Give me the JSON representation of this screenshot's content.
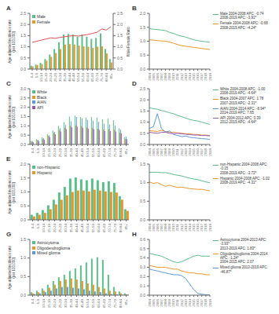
{
  "chart_data": [
    {
      "type": "bar",
      "title": "A",
      "ylabel": "Age-adjusted incidence rate\n(per 100,000)",
      "y2label": "Male/Female Ratio",
      "categories": [
        "0-4",
        "5-9",
        "10-14",
        "15-19",
        "20-24",
        "25-29",
        "30-34",
        "35-39",
        "40-44",
        "45-49",
        "50-54",
        "55-59",
        "60-64",
        "65-69",
        "70-74",
        "75-79",
        "80-84",
        "85+"
      ],
      "series": [
        {
          "name": "Male",
          "color": "#5DBD8A",
          "values": [
            0.15,
            0.2,
            0.28,
            0.45,
            0.65,
            0.9,
            1.2,
            1.55,
            1.58,
            1.55,
            1.45,
            1.55,
            1.45,
            1.35,
            1.4,
            1.6,
            0.9,
            0.45
          ]
        },
        {
          "name": "Female",
          "color": "#E8962A",
          "values": [
            0.12,
            0.18,
            0.22,
            0.38,
            0.55,
            0.72,
            0.9,
            1.1,
            1.12,
            1.1,
            1.05,
            1.02,
            1.0,
            0.95,
            1.0,
            1.02,
            0.7,
            0.3
          ]
        },
        {
          "type": "line",
          "axis": "y2",
          "color": "#E05050",
          "values": [
            1.2,
            1.25,
            1.3,
            1.35,
            1.4,
            1.38,
            1.42,
            1.45,
            1.48,
            1.5,
            1.48,
            1.52,
            1.55,
            1.6,
            1.65,
            1.8,
            1.75,
            1.9
          ]
        }
      ],
      "ylim": [
        0,
        2.5
      ],
      "yticks": [
        {
          "value": 0,
          "label": "0.0"
        },
        0.5,
        {
          "value": 1,
          "label": "1.0"
        },
        1.5,
        {
          "value": 2,
          "label": "2.0"
        },
        2.5
      ],
      "y2lim": [
        0,
        2.5
      ],
      "y2ticks": [
        {
          "value": 0,
          "label": "0.0"
        },
        0.5,
        {
          "value": 1,
          "label": "1.0"
        },
        1.5,
        {
          "value": 2,
          "label": "2.0"
        },
        2.5
      ],
      "legend": "upper left"
    },
    {
      "type": "line",
      "title": "B",
      "categories": [
        "2004",
        "2005",
        "2006",
        "2007",
        "2008",
        "2009",
        "2010",
        "2011",
        "2012",
        "2013",
        "2014",
        "2015",
        "2016",
        "2017",
        "2018",
        "2019"
      ],
      "series": [
        {
          "name": "Male 2004-2008 APC: -0.74\n2008-2019 APC: -3.91*",
          "color": "#5DBD8A",
          "values": [
            1.45,
            1.43,
            1.42,
            1.4,
            1.38,
            1.32,
            1.28,
            1.22,
            1.18,
            1.15,
            1.1,
            1.05,
            1.02,
            1.0,
            0.98,
            0.96
          ]
        },
        {
          "name": "Female 2004-2008 APC: -0.68\n2008-2019 APC: -4.24*",
          "color": "#E8962A",
          "values": [
            1.05,
            1.04,
            1.02,
            1.01,
            1.0,
            0.97,
            0.93,
            0.88,
            0.84,
            0.82,
            0.8,
            0.78,
            0.76,
            0.74,
            0.72,
            0.7
          ]
        }
      ],
      "ylim": [
        0,
        2.0
      ],
      "yticks": [
        {
          "value": 0,
          "label": "0.0"
        },
        0.5,
        {
          "value": 1,
          "label": "1.0"
        },
        1.5,
        {
          "value": 2,
          "label": "2.0"
        }
      ],
      "legend": "right"
    },
    {
      "type": "bar",
      "title": "C",
      "ylabel": "Age-adjusted incidence rate\n(per 100,000)",
      "categories": [
        "0-4",
        "5-9",
        "10-14",
        "15-19",
        "20-24",
        "25-29",
        "30-34",
        "35-39",
        "40-44",
        "45-49",
        "50-54",
        "55-59",
        "60-64",
        "65-69",
        "70-74",
        "75-79",
        "80-84",
        "85+"
      ],
      "series": [
        {
          "name": "White",
          "color": "#5DBD8A",
          "values": [
            0.2,
            0.28,
            0.38,
            0.55,
            0.75,
            1.0,
            1.2,
            1.5,
            1.55,
            1.48,
            1.45,
            1.48,
            1.45,
            1.35,
            1.38,
            1.3,
            0.88,
            0.38
          ]
        },
        {
          "name": "Black",
          "color": "#E8962A",
          "values": [
            0.15,
            0.22,
            0.3,
            0.45,
            0.62,
            0.78,
            0.9,
            1.0,
            1.02,
            0.98,
            0.92,
            0.88,
            0.85,
            0.8,
            0.82,
            0.78,
            0.62,
            0.28
          ]
        },
        {
          "name": "AIAN",
          "color": "#5B9BD5",
          "values": [
            0.18,
            0.25,
            0.35,
            0.5,
            0.68,
            0.88,
            1.05,
            1.25,
            1.48,
            1.4,
            1.32,
            1.28,
            1.22,
            1.12,
            1.08,
            1.02,
            0.8,
            0.42
          ]
        },
        {
          "name": "API",
          "color": "#9B59B6",
          "values": [
            0.12,
            0.18,
            0.25,
            0.4,
            0.55,
            0.7,
            0.82,
            0.92,
            0.95,
            0.9,
            0.85,
            0.82,
            0.78,
            0.72,
            0.72,
            0.7,
            0.6,
            0.28
          ]
        }
      ],
      "ylim": [
        0,
        3.0
      ],
      "yticks": [
        {
          "value": 0,
          "label": "0.0"
        },
        0.5,
        {
          "value": 1,
          "label": "1.0"
        },
        1.5,
        {
          "value": 2,
          "label": "2.0"
        },
        2.5,
        {
          "value": 3,
          "label": "3.0"
        }
      ],
      "legend": "upper left"
    },
    {
      "type": "line",
      "title": "D",
      "categories": [
        "2004",
        "2005",
        "2006",
        "2007",
        "2008",
        "2009",
        "2010",
        "2011",
        "2012",
        "2013",
        "2014",
        "2015",
        "2016",
        "2017",
        "2018",
        "2019"
      ],
      "series": [
        {
          "name": "White 2004-2008 APC: -1.00\n2008-2019 APC: -4.64*",
          "color": "#5DBD8A",
          "values": [
            1.65,
            1.6,
            1.58,
            1.52,
            1.48,
            1.42,
            1.38,
            1.3,
            1.25,
            1.18,
            1.12,
            1.08,
            1.05,
            1.0,
            0.95,
            0.9
          ]
        },
        {
          "name": "Black 2004-2007 APC: 1.78\n2007-2019 APC: -2.31*",
          "color": "#E8962A",
          "values": [
            0.62,
            0.6,
            0.58,
            0.64,
            0.58,
            0.55,
            0.55,
            0.52,
            0.5,
            0.48,
            0.48,
            0.45,
            0.45,
            0.42,
            0.42,
            0.4
          ]
        },
        {
          "name": "AIAN 2004-2014 APC: -8.94*\n2014-2019 APC: 7.65",
          "color": "#5B9BD5",
          "values": [
            0.72,
            0.8,
            1.38,
            0.72,
            0.55,
            0.6,
            0.45,
            0.4,
            0.35,
            0.38,
            0.32,
            0.3,
            0.28,
            0.26,
            0.25,
            0.22
          ]
        },
        {
          "name": "API 2004-2012 APC: 0.39\n2012-2019 APC: -4.64*",
          "color": "#9B59B6",
          "values": [
            0.55,
            0.52,
            0.5,
            0.54,
            0.55,
            0.5,
            0.48,
            0.5,
            0.48,
            0.46,
            0.44,
            0.42,
            0.42,
            0.4,
            0.4,
            0.38
          ]
        }
      ],
      "ylim": [
        0,
        2.5
      ],
      "yticks": [
        {
          "value": 0,
          "label": "0.0"
        },
        0.5,
        {
          "value": 1,
          "label": "1.0"
        },
        1.5,
        {
          "value": 2,
          "label": "2.0"
        },
        2.5
      ],
      "legend": "right"
    },
    {
      "type": "bar",
      "title": "E",
      "ylabel": "Age-adjusted incidence rate\n(per 100,000)",
      "categories": [
        "0-4",
        "5-9",
        "10-14",
        "15-19",
        "20-24",
        "25-29",
        "30-34",
        "35-39",
        "40-44",
        "45-49",
        "50-54",
        "55-59",
        "60-64",
        "65-69",
        "70-74",
        "75-79",
        "80-84",
        "85+"
      ],
      "series": [
        {
          "name": "non-Hispanic",
          "color": "#5DBD8A",
          "values": [
            0.18,
            0.25,
            0.35,
            0.52,
            0.72,
            0.98,
            1.18,
            1.48,
            1.52,
            1.45,
            1.42,
            1.48,
            1.42,
            1.35,
            1.38,
            1.32,
            0.85,
            0.38
          ]
        },
        {
          "name": "Hispanic",
          "color": "#E8962A",
          "values": [
            0.12,
            0.18,
            0.25,
            0.38,
            0.55,
            0.72,
            0.88,
            1.0,
            1.05,
            1.05,
            1.02,
            1.08,
            1.05,
            1.02,
            1.0,
            0.98,
            0.72,
            0.32
          ]
        }
      ],
      "ylim": [
        0,
        2.0
      ],
      "yticks": [
        {
          "value": 0,
          "label": "0.0"
        },
        0.5,
        {
          "value": 1,
          "label": "1.0"
        },
        1.5,
        {
          "value": 2,
          "label": "2.0"
        }
      ],
      "legend": "upper left"
    },
    {
      "type": "line",
      "title": "F",
      "categories": [
        "2004",
        "2005",
        "2006",
        "2007",
        "2008",
        "2009",
        "2010",
        "2011",
        "2012",
        "2013",
        "2014",
        "2015",
        "2016",
        "2017",
        "2018",
        "2019"
      ],
      "series": [
        {
          "name": "non-Hispanic 2004-2008 APC: -0.15\n2008-2019 APC: -3.72*",
          "color": "#5DBD8A",
          "values": [
            1.28,
            1.28,
            1.28,
            1.27,
            1.27,
            1.25,
            1.22,
            1.2,
            1.18,
            1.15,
            1.12,
            1.1,
            1.08,
            1.05,
            1.02,
            1.0
          ]
        },
        {
          "name": "Hispanic 2004-2008 APC: -1.02\n2008-2019 APC: -4.31*",
          "color": "#E8962A",
          "values": [
            1.02,
            0.98,
            1.0,
            0.95,
            0.9,
            0.93,
            0.9,
            0.87,
            0.88,
            0.86,
            0.84,
            0.83,
            0.82,
            0.82,
            0.8,
            0.78
          ]
        }
      ],
      "ylim": [
        0,
        1.5
      ],
      "yticks": [
        {
          "value": 0,
          "label": "0.0"
        },
        0.5,
        {
          "value": 1,
          "label": "1.0"
        },
        1.5
      ],
      "legend": "right"
    },
    {
      "type": "bar",
      "title": "G",
      "ylabel": "Age-adjusted incidence rate\n(per 100,000)",
      "categories": [
        "0-4",
        "5-9",
        "10-14",
        "15-19",
        "20-24",
        "25-29",
        "30-34",
        "35-39",
        "40-44",
        "45-49",
        "50-54",
        "55-59",
        "60-64",
        "65-69",
        "70-74",
        "75-79",
        "80-84",
        "85+"
      ],
      "series": [
        {
          "name": "Astrocytoma",
          "color": "#5DBD8A",
          "values": [
            0.08,
            0.12,
            0.18,
            0.28,
            0.38,
            0.48,
            0.55,
            0.65,
            0.72,
            0.8,
            0.88,
            0.98,
            1.02,
            0.95,
            0.55,
            0.22,
            0.1,
            0.05
          ]
        },
        {
          "name": "Oligodendroglioma",
          "color": "#E8962A",
          "values": [
            0.05,
            0.08,
            0.12,
            0.2,
            0.28,
            0.38,
            0.42,
            0.45,
            0.42,
            0.38,
            0.32,
            0.28,
            0.22,
            0.18,
            0.12,
            0.1,
            0.05,
            0.02
          ]
        },
        {
          "name": "Mixed glioma",
          "color": "#5B9BD5",
          "values": [
            0.03,
            0.05,
            0.08,
            0.12,
            0.18,
            0.22,
            0.22,
            0.2,
            0.18,
            0.16,
            0.12,
            0.1,
            0.08,
            0.05,
            0.03,
            0.02,
            0.01,
            0.01
          ]
        }
      ],
      "ylim": [
        0,
        1.5
      ],
      "yticks": [
        {
          "value": 0,
          "label": "0.0"
        },
        0.5,
        {
          "value": 1,
          "label": "1.0"
        },
        1.5
      ],
      "legend": "upper left"
    },
    {
      "type": "line",
      "title": "H",
      "categories": [
        "2004",
        "2005",
        "2006",
        "2007",
        "2008",
        "2009",
        "2010",
        "2011",
        "2012",
        "2013",
        "2014",
        "2015",
        "2016",
        "2017",
        "2018",
        "2019"
      ],
      "series": [
        {
          "name": "Astrocytoma 2004-2013 APC: -3.93*\n2013-2019 APC: 1.83*",
          "color": "#5DBD8A",
          "values": [
            0.45,
            0.44,
            0.43,
            0.42,
            0.4,
            0.38,
            0.36,
            0.35,
            0.36,
            0.38,
            0.4,
            0.42,
            0.43,
            0.42,
            0.42,
            0.42
          ]
        },
        {
          "name": "Oligodendroglioma 2004-2014 APC: -1.24*\n2004-2015 APC: 2.07",
          "color": "#E8962A",
          "values": [
            0.32,
            0.31,
            0.3,
            0.3,
            0.3,
            0.29,
            0.28,
            0.28,
            0.26,
            0.25,
            0.24,
            0.24,
            0.23,
            0.23,
            0.22,
            0.22
          ]
        },
        {
          "name": "Mixed glioma 2013-2019 APC: -46.87*",
          "color": "#5B9BD5",
          "values": [
            0.28,
            0.27,
            0.26,
            0.25,
            0.24,
            0.23,
            0.22,
            0.22,
            0.21,
            0.18,
            0.12,
            0.06,
            0.02,
            0.01,
            0.005,
            0.002
          ]
        }
      ],
      "ylim": [
        0,
        0.6
      ],
      "yticks": [
        {
          "value": 0,
          "label": "0.0"
        },
        0.1,
        0.2,
        0.3,
        0.4,
        0.5,
        0.6
      ],
      "legend": "right"
    }
  ]
}
